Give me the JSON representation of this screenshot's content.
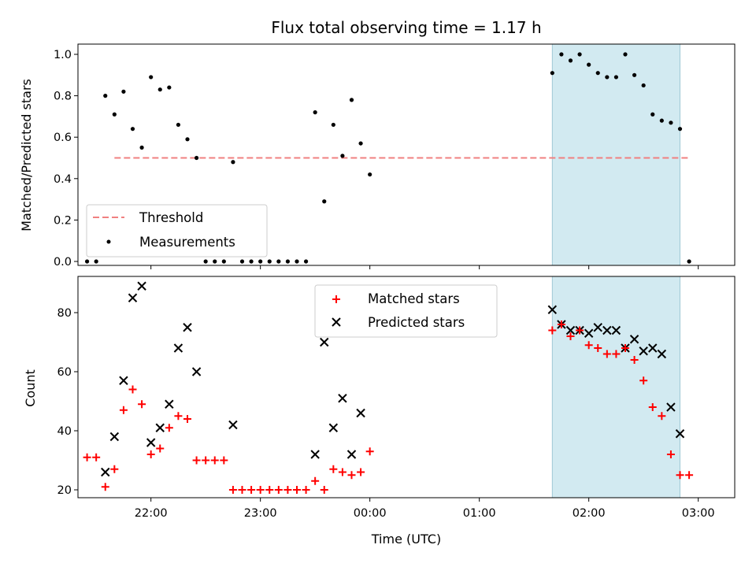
{
  "chart_data": [
    {
      "type": "scatter",
      "title": "Flux total observing time = 1.17 h",
      "xlabel": "",
      "ylabel": "Matched/Predicted stars",
      "ylim": [
        0,
        1.05
      ],
      "xlim": [
        "21:20",
        "03:20"
      ],
      "yticks": [
        "0.0",
        "0.2",
        "0.4",
        "0.6",
        "0.8",
        "1.0"
      ],
      "highlight_span": [
        "01:40",
        "02:50"
      ],
      "legend": {
        "position": "lower-left",
        "entries": [
          "Threshold",
          "Measurements"
        ]
      },
      "threshold": {
        "name": "Threshold",
        "value": 0.5,
        "x_range": [
          "21:40",
          "02:55"
        ],
        "color": "#f08080"
      },
      "series": [
        {
          "name": "Measurements",
          "color": "#000000",
          "points": [
            [
              "21:25",
              0.0
            ],
            [
              "21:30",
              0.0
            ],
            [
              "21:35",
              0.8
            ],
            [
              "21:40",
              0.71
            ],
            [
              "21:45",
              0.82
            ],
            [
              "21:50",
              0.64
            ],
            [
              "21:55",
              0.55
            ],
            [
              "22:00",
              0.89
            ],
            [
              "22:05",
              0.83
            ],
            [
              "22:10",
              0.84
            ],
            [
              "22:15",
              0.66
            ],
            [
              "22:20",
              0.59
            ],
            [
              "22:25",
              0.5
            ],
            [
              "22:30",
              0.0
            ],
            [
              "22:35",
              0.0
            ],
            [
              "22:40",
              0.0
            ],
            [
              "22:45",
              0.48
            ],
            [
              "22:50",
              0.0
            ],
            [
              "22:55",
              0.0
            ],
            [
              "23:00",
              0.0
            ],
            [
              "23:05",
              0.0
            ],
            [
              "23:10",
              0.0
            ],
            [
              "23:15",
              0.0
            ],
            [
              "23:20",
              0.0
            ],
            [
              "23:25",
              0.0
            ],
            [
              "23:30",
              0.72
            ],
            [
              "23:35",
              0.29
            ],
            [
              "23:40",
              0.66
            ],
            [
              "23:45",
              0.51
            ],
            [
              "23:50",
              0.78
            ],
            [
              "23:55",
              0.57
            ],
            [
              "00:00",
              0.42
            ],
            [
              "01:40",
              0.91
            ],
            [
              "01:45",
              1.0
            ],
            [
              "01:50",
              0.97
            ],
            [
              "01:55",
              1.0
            ],
            [
              "02:00",
              0.95
            ],
            [
              "02:05",
              0.91
            ],
            [
              "02:10",
              0.89
            ],
            [
              "02:15",
              0.89
            ],
            [
              "02:20",
              1.0
            ],
            [
              "02:25",
              0.9
            ],
            [
              "02:30",
              0.85
            ],
            [
              "02:35",
              0.71
            ],
            [
              "02:40",
              0.68
            ],
            [
              "02:45",
              0.67
            ],
            [
              "02:50",
              0.64
            ],
            [
              "02:55",
              0.0
            ]
          ]
        }
      ]
    },
    {
      "type": "scatter",
      "title": "",
      "xlabel": "Time (UTC)",
      "ylabel": "Count",
      "ylim": [
        16.5,
        92
      ],
      "xlim": [
        "21:20",
        "03:20"
      ],
      "yticks": [
        "20",
        "40",
        "60",
        "80"
      ],
      "xticks": [
        "22:00",
        "23:00",
        "00:00",
        "01:00",
        "02:00",
        "03:00"
      ],
      "highlight_span": [
        "01:40",
        "02:50"
      ],
      "legend": {
        "position": "upper-center",
        "entries": [
          "Matched stars",
          "Predicted stars"
        ]
      },
      "series": [
        {
          "name": "Matched stars",
          "marker": "plus",
          "color": "#ff0000",
          "points": [
            [
              "21:25",
              31
            ],
            [
              "21:30",
              31
            ],
            [
              "21:35",
              21
            ],
            [
              "21:40",
              27
            ],
            [
              "21:45",
              47
            ],
            [
              "21:50",
              54
            ],
            [
              "21:55",
              49
            ],
            [
              "22:00",
              32
            ],
            [
              "22:05",
              34
            ],
            [
              "22:10",
              41
            ],
            [
              "22:15",
              45
            ],
            [
              "22:20",
              44
            ],
            [
              "22:25",
              30
            ],
            [
              "22:30",
              30
            ],
            [
              "22:35",
              30
            ],
            [
              "22:40",
              30
            ],
            [
              "22:45",
              20
            ],
            [
              "22:50",
              20
            ],
            [
              "22:55",
              20
            ],
            [
              "23:00",
              20
            ],
            [
              "23:05",
              20
            ],
            [
              "23:10",
              20
            ],
            [
              "23:15",
              20
            ],
            [
              "23:20",
              20
            ],
            [
              "23:25",
              20
            ],
            [
              "23:30",
              23
            ],
            [
              "23:35",
              20
            ],
            [
              "23:40",
              27
            ],
            [
              "23:45",
              26
            ],
            [
              "23:50",
              25
            ],
            [
              "23:55",
              26
            ],
            [
              "00:00",
              33
            ],
            [
              "01:40",
              74
            ],
            [
              "01:45",
              76
            ],
            [
              "01:50",
              72
            ],
            [
              "01:55",
              74
            ],
            [
              "02:00",
              69
            ],
            [
              "02:05",
              68
            ],
            [
              "02:10",
              66
            ],
            [
              "02:15",
              66
            ],
            [
              "02:20",
              68
            ],
            [
              "02:25",
              64
            ],
            [
              "02:30",
              57
            ],
            [
              "02:35",
              48
            ],
            [
              "02:40",
              45
            ],
            [
              "02:45",
              32
            ],
            [
              "02:50",
              25
            ],
            [
              "02:55",
              25
            ]
          ]
        },
        {
          "name": "Predicted stars",
          "marker": "x",
          "color": "#000000",
          "points": [
            [
              "21:35",
              26
            ],
            [
              "21:40",
              38
            ],
            [
              "21:45",
              57
            ],
            [
              "21:50",
              85
            ],
            [
              "21:55",
              89
            ],
            [
              "22:00",
              36
            ],
            [
              "22:05",
              41
            ],
            [
              "22:10",
              49
            ],
            [
              "22:15",
              68
            ],
            [
              "22:20",
              75
            ],
            [
              "22:25",
              60
            ],
            [
              "22:45",
              42
            ],
            [
              "23:30",
              32
            ],
            [
              "23:35",
              70
            ],
            [
              "23:40",
              41
            ],
            [
              "23:45",
              51
            ],
            [
              "23:50",
              32
            ],
            [
              "23:55",
              46
            ],
            [
              "01:40",
              81
            ],
            [
              "01:45",
              76
            ],
            [
              "01:50",
              74
            ],
            [
              "01:55",
              74
            ],
            [
              "02:00",
              73
            ],
            [
              "02:05",
              75
            ],
            [
              "02:10",
              74
            ],
            [
              "02:15",
              74
            ],
            [
              "02:20",
              68
            ],
            [
              "02:25",
              71
            ],
            [
              "02:30",
              67
            ],
            [
              "02:35",
              68
            ],
            [
              "02:40",
              66
            ],
            [
              "02:45",
              48
            ],
            [
              "02:50",
              39
            ]
          ]
        }
      ]
    }
  ]
}
